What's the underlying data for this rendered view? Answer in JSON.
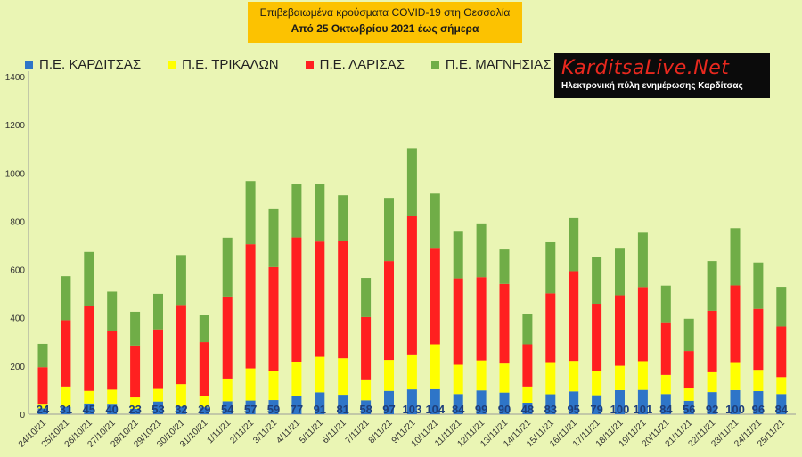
{
  "title_line1": "Επιβεβαιωμένα κρούσματα COVID-19 στη Θεσσαλία",
  "title_line2": "Από 25 Οκτωβρίου 2021 έως σήμερα",
  "logo": {
    "name": "KarditsaLive.Net",
    "tagline": "Ηλεκτρονική πύλη ενημέρωσης Καρδίτσας"
  },
  "colors": {
    "kard": "#2e75c8",
    "trik": "#ffff00",
    "lar": "#ff2020",
    "mag": "#70ad47",
    "plot_bg": "#eaf5b4"
  },
  "chart_data": {
    "type": "bar",
    "stacked": true,
    "title": "Επιβεβαιωμένα κρούσματα COVID-19 στη Θεσσαλία",
    "subtitle": "Από 25 Οκτωβρίου 2021 έως σήμερα",
    "ylim": [
      0,
      1400
    ],
    "yticks": [
      0,
      200,
      400,
      600,
      800,
      1000,
      1200,
      1400
    ],
    "grid": false,
    "legend_position": "top-left",
    "categories": [
      "24/10/21",
      "25/10/21",
      "26/10/21",
      "27/10/21",
      "28/10/21",
      "29/10/21",
      "30/10/21",
      "31/10/21",
      "1/11/21",
      "2/11/21",
      "3/11/21",
      "4/11/21",
      "5/11/21",
      "6/11/21",
      "7/11/21",
      "8/11/21",
      "9/11/21",
      "10/11/21",
      "11/11/21",
      "12/11/21",
      "13/11/21",
      "14/11/21",
      "15/11/21",
      "16/11/21",
      "17/11/21",
      "18/11/21",
      "19/11/21",
      "20/11/21",
      "21/11/21",
      "22/11/21",
      "23/11/21",
      "24/11/21",
      "25/11/21"
    ],
    "series": [
      {
        "name": "Π.Ε. ΚΑΡΔΙΤΣΑΣ",
        "color_key": "kard",
        "values": [
          24,
          31,
          45,
          40,
          23,
          53,
          32,
          29,
          54,
          57,
          59,
          77,
          91,
          81,
          58,
          97,
          103,
          104,
          84,
          99,
          90,
          48,
          83,
          95,
          79,
          100,
          101,
          84,
          56,
          92,
          100,
          96,
          84
        ]
      },
      {
        "name": "Π.Ε. ΤΡΙΚΑΛΩΝ",
        "color_key": "trik",
        "values": [
          16,
          84,
          52,
          62,
          47,
          52,
          93,
          45,
          94,
          133,
          121,
          141,
          147,
          151,
          83,
          128,
          145,
          186,
          121,
          124,
          120,
          67,
          133,
          126,
          99,
          101,
          119,
          79,
          51,
          82,
          116,
          88,
          70
        ]
      },
      {
        "name": "Π.Ε. ΛΑΡΙΣΑΣ",
        "color_key": "lar",
        "values": [
          155,
          275,
          352,
          242,
          215,
          247,
          328,
          225,
          340,
          515,
          430,
          515,
          478,
          488,
          262,
          410,
          575,
          400,
          358,
          345,
          330,
          175,
          285,
          372,
          280,
          292,
          307,
          215,
          155,
          255,
          318,
          253,
          210
        ]
      },
      {
        "name": "Π.Ε. ΜΑΓΝΗΣΙΑΣ",
        "color_key": "mag",
        "values": [
          97,
          182,
          224,
          164,
          140,
          147,
          207,
          111,
          244,
          262,
          240,
          220,
          240,
          188,
          162,
          262,
          280,
          225,
          197,
          223,
          143,
          126,
          212,
          220,
          194,
          197,
          229,
          155,
          134,
          206,
          237,
          192,
          164
        ]
      }
    ],
    "data_labels_series": "Π.Ε. ΚΑΡΔΙΤΣΑΣ"
  }
}
